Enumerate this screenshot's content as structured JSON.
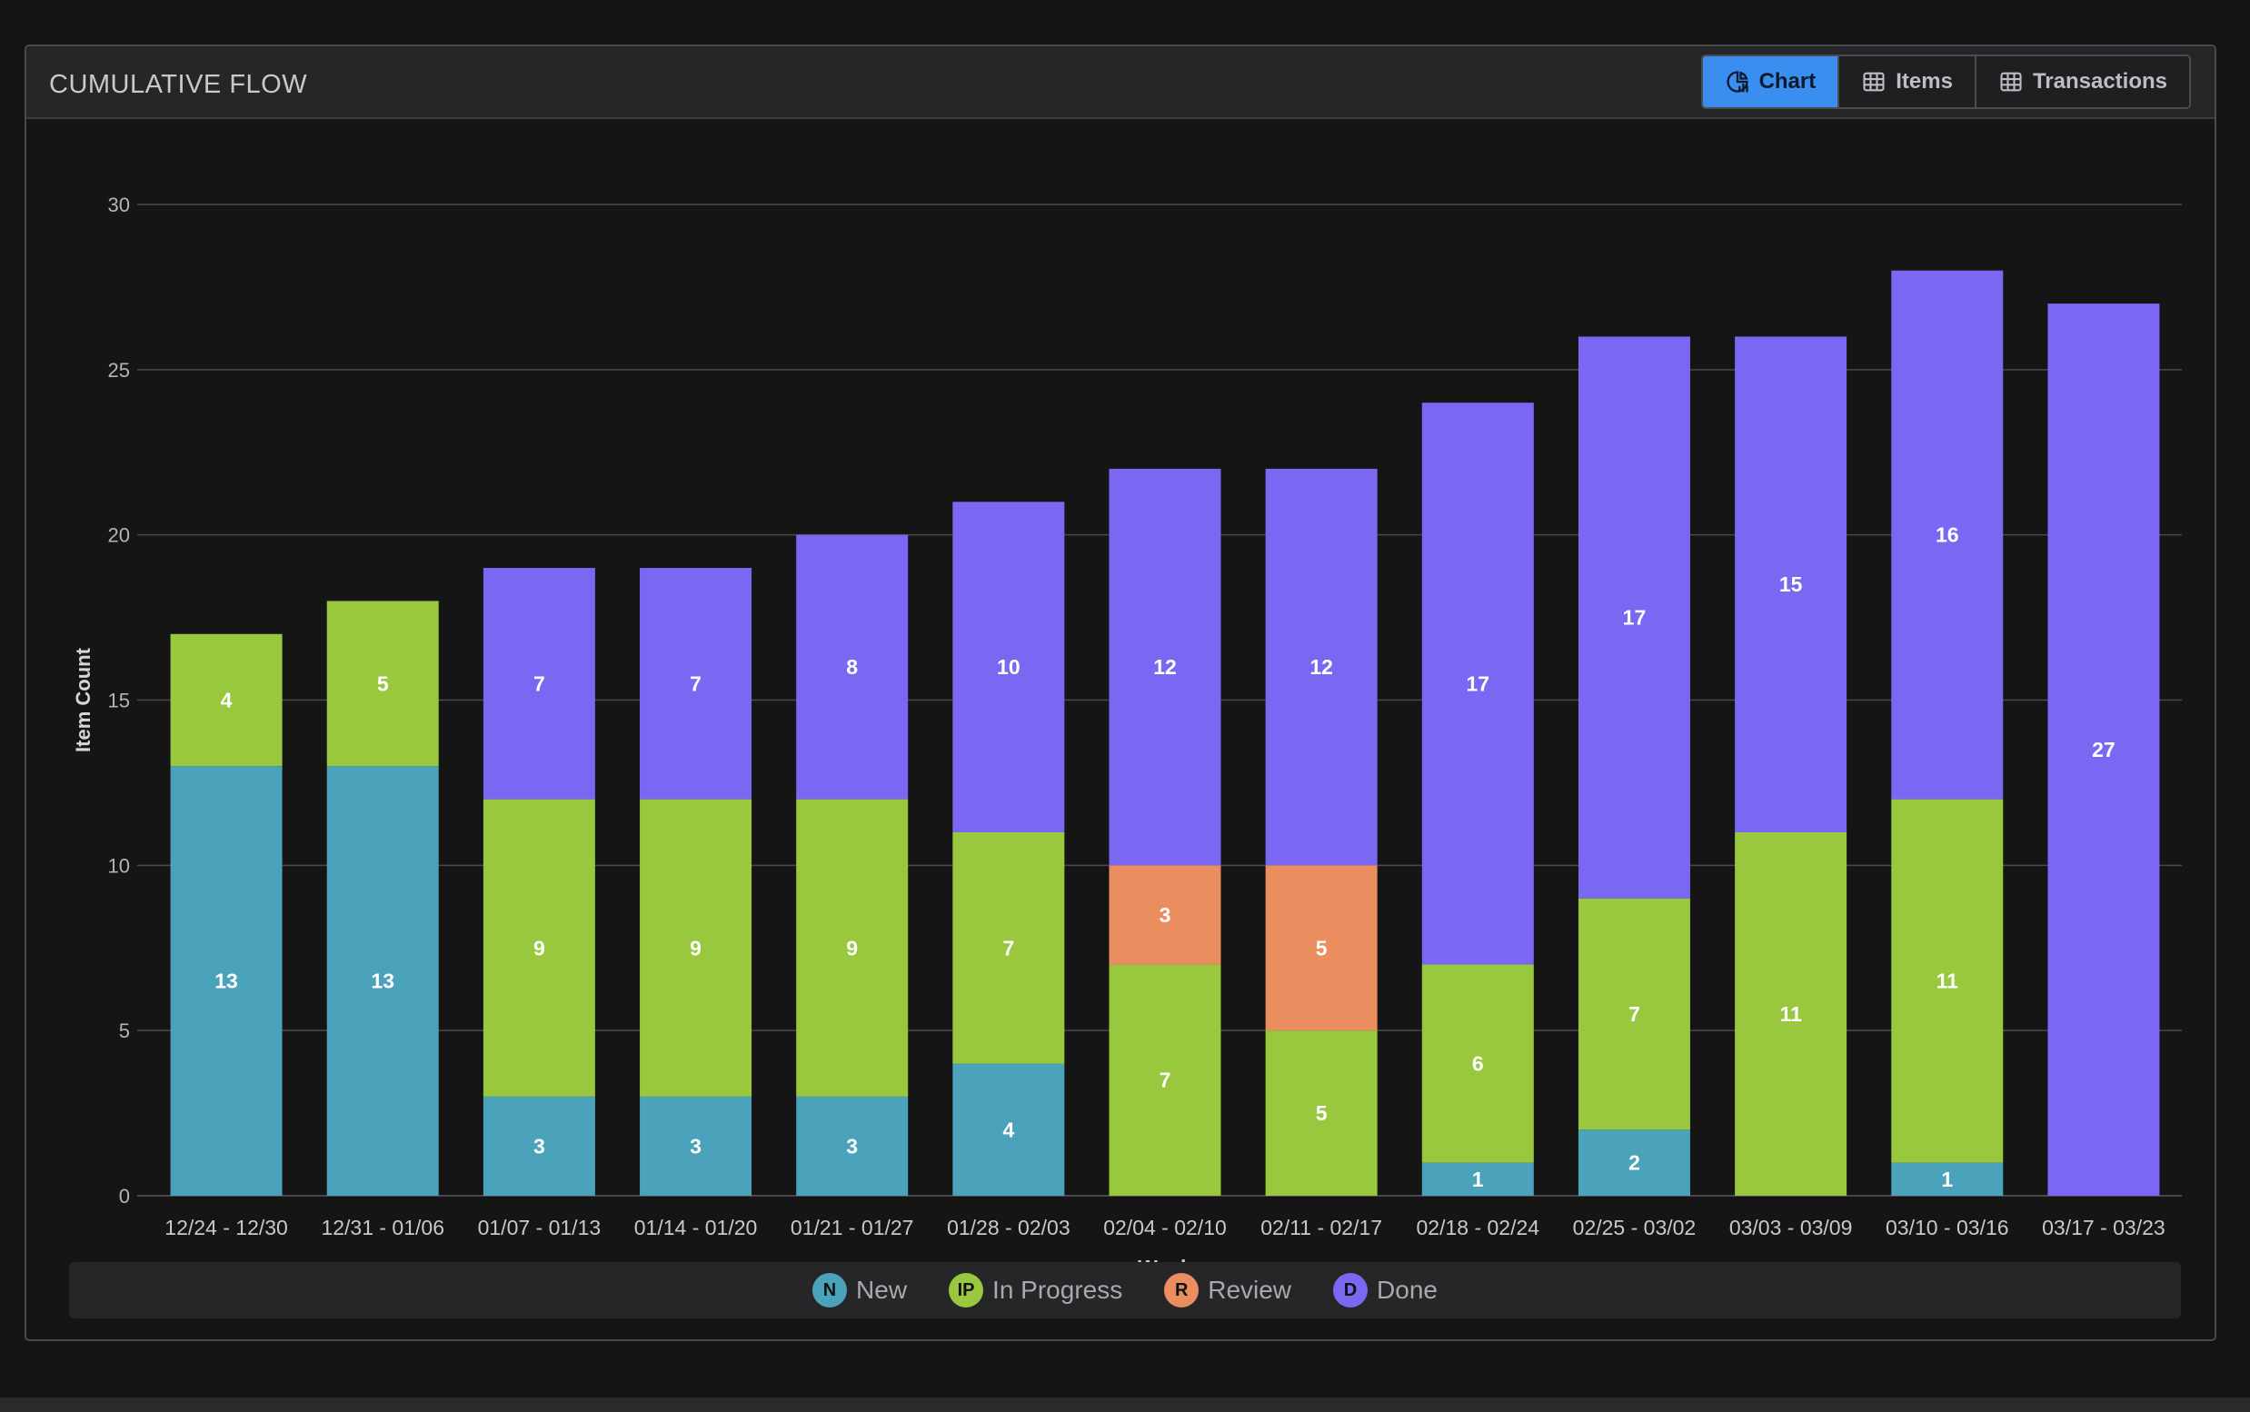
{
  "panel": {
    "title": "CUMULATIVE FLOW",
    "tabs": [
      {
        "label": "Chart",
        "icon": "chart-icon",
        "active": true
      },
      {
        "label": "Items",
        "icon": "table-icon",
        "active": false
      },
      {
        "label": "Transactions",
        "icon": "table-icon",
        "active": false
      }
    ]
  },
  "legend": [
    {
      "badge": "N",
      "label": "New",
      "color": "#4aa3bb"
    },
    {
      "badge": "IP",
      "label": "In Progress",
      "color": "#99c83e"
    },
    {
      "badge": "R",
      "label": "Review",
      "color": "#ea8e60"
    },
    {
      "badge": "D",
      "label": "Done",
      "color": "#7a68f2"
    }
  ],
  "chart_data": {
    "type": "bar",
    "stacked": true,
    "xlabel": "Week",
    "ylabel": "Item Count",
    "ylim": [
      0,
      30
    ],
    "yticks": [
      0,
      5,
      10,
      15,
      20,
      25,
      30
    ],
    "grid": true,
    "legend_position": "bottom",
    "categories": [
      "12/24 - 12/30",
      "12/31 - 01/06",
      "01/07 - 01/13",
      "01/14 - 01/20",
      "01/21 - 01/27",
      "01/28 - 02/03",
      "02/04 - 02/10",
      "02/11 - 02/17",
      "02/18 - 02/24",
      "02/25 - 03/02",
      "03/03 - 03/09",
      "03/10 - 03/16",
      "03/17 - 03/23"
    ],
    "series": [
      {
        "name": "New",
        "color": "#4aa3bb",
        "values": [
          13,
          13,
          3,
          3,
          3,
          4,
          0,
          0,
          1,
          2,
          0,
          1,
          0
        ]
      },
      {
        "name": "In Progress",
        "color": "#99c83e",
        "values": [
          4,
          5,
          9,
          9,
          9,
          7,
          7,
          5,
          6,
          7,
          11,
          11,
          0
        ]
      },
      {
        "name": "Review",
        "color": "#ea8e60",
        "values": [
          0,
          0,
          0,
          0,
          0,
          0,
          3,
          5,
          0,
          0,
          0,
          0,
          0
        ]
      },
      {
        "name": "Done",
        "color": "#7a68f2",
        "values": [
          0,
          0,
          7,
          7,
          8,
          10,
          12,
          12,
          17,
          17,
          15,
          16,
          27
        ]
      }
    ]
  }
}
